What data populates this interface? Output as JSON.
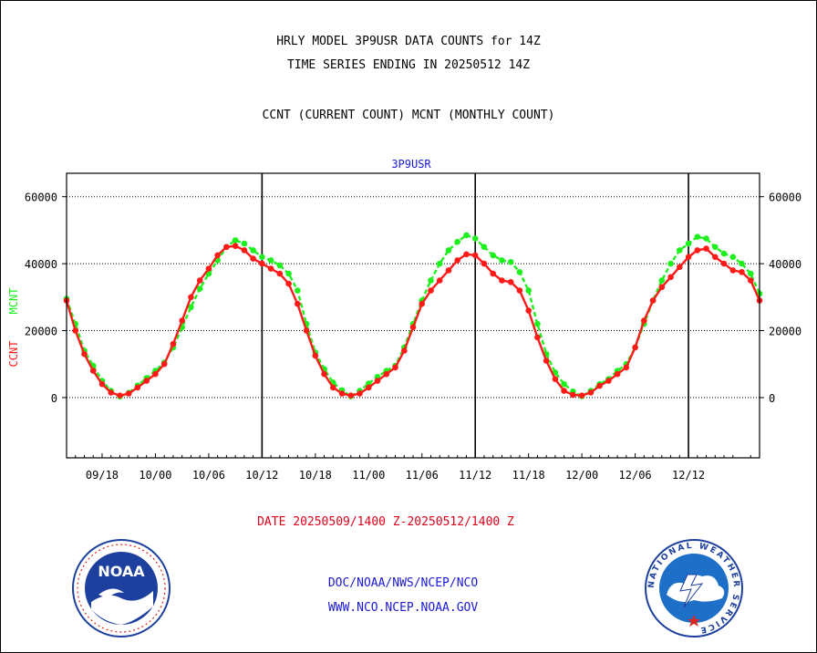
{
  "header": {
    "line1": "HRLY MODEL 3P9USR DATA COUNTS for 14Z",
    "line2": "TIME SERIES ENDING IN 20250512 14Z",
    "line3": "CCNT (CURRENT COUNT) MCNT (MONTHLY COUNT)"
  },
  "chart_data": {
    "type": "line",
    "title": "3P9USR",
    "ylabel_series1": "CCNT",
    "ylabel_series2": "MCNT",
    "ylim": [
      -18000,
      67000
    ],
    "yticks": [
      0,
      20000,
      40000,
      60000
    ],
    "ytick_labels": [
      "0",
      "20000",
      "40000",
      "60000"
    ],
    "xtick_labels": [
      "09/18",
      "10/00",
      "10/06",
      "10/12",
      "10/18",
      "11/00",
      "11/06",
      "11/12",
      "11/18",
      "12/00",
      "12/06",
      "12/12"
    ],
    "x_hours_start": "09/14",
    "day_boundaries": [
      "10/12",
      "11/12",
      "12/12"
    ],
    "grid": true,
    "series": [
      {
        "name": "CCNT",
        "color": "#ff1a1a",
        "values": [
          29000,
          20000,
          13000,
          8000,
          4000,
          1500,
          600,
          1200,
          3000,
          5000,
          7000,
          10000,
          16000,
          23000,
          30000,
          35000,
          38500,
          42500,
          45000,
          45300,
          44000,
          41500,
          40000,
          38500,
          37000,
          34000,
          28000,
          20000,
          12500,
          7000,
          3000,
          1200,
          600,
          1200,
          3000,
          5000,
          7000,
          9000,
          14000,
          21000,
          28000,
          32000,
          35000,
          38000,
          41000,
          42800,
          42500,
          40000,
          37000,
          35000,
          34500,
          32000,
          26000,
          18000,
          11000,
          5500,
          2000,
          800,
          600,
          1500,
          3500,
          5000,
          7000,
          9000,
          15000,
          23000,
          29000,
          33000,
          36000,
          39000,
          42000,
          44000,
          44500,
          42000,
          40000,
          38000,
          37500,
          35000,
          29000
        ]
      },
      {
        "name": "MCNT",
        "color": "#1ef01e",
        "values": [
          29500,
          22000,
          14000,
          9500,
          5000,
          2000,
          300,
          1400,
          3600,
          5800,
          8000,
          10500,
          15000,
          21000,
          27000,
          32500,
          37000,
          41000,
          45000,
          47000,
          46000,
          44000,
          42000,
          41000,
          39500,
          37000,
          32000,
          22000,
          13500,
          8500,
          4500,
          2200,
          400,
          2000,
          4200,
          6200,
          8000,
          9500,
          15000,
          22000,
          29000,
          35000,
          40000,
          44000,
          46500,
          48500,
          47500,
          45000,
          42500,
          41000,
          40500,
          37500,
          32000,
          22000,
          13000,
          7500,
          4000,
          1800,
          400,
          2000,
          4000,
          5500,
          8000,
          10000,
          15000,
          22000,
          29000,
          35000,
          40000,
          44000,
          46000,
          48000,
          47500,
          45000,
          43000,
          42000,
          40000,
          37000,
          31000
        ]
      }
    ]
  },
  "date_range": "DATE 20250509/1400 Z-20250512/1400 Z",
  "footer": {
    "line1": "DOC/NOAA/NWS/NCEP/NCO",
    "line2": "WWW.NCO.NCEP.NOAA.GOV"
  },
  "logos": {
    "noaa_text": "NOAA",
    "nws_ring_text": "NATIONAL WEATHER SERVICE"
  },
  "colors": {
    "axis": "#000000",
    "title_blue": "#1a1ad4",
    "date_red": "#e0001b"
  }
}
